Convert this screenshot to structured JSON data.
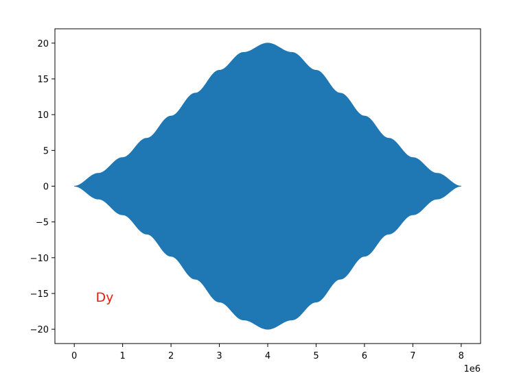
{
  "chart_data": {
    "type": "area",
    "title": "",
    "xlabel": "",
    "ylabel": "",
    "x_offset_label": "1e6",
    "xlim": [
      -0.4,
      8.4
    ],
    "ylim": [
      -22,
      22
    ],
    "x_ticks": [
      0,
      1,
      2,
      3,
      4,
      5,
      6,
      7,
      8
    ],
    "x_tick_labels": [
      "0",
      "1",
      "2",
      "3",
      "4",
      "5",
      "6",
      "7",
      "8"
    ],
    "y_ticks": [
      20,
      15,
      10,
      5,
      0,
      -5,
      -10,
      -15,
      -20
    ],
    "y_tick_labels": [
      "20",
      "15",
      "10",
      "5",
      "0",
      "−5",
      "−10",
      "−15",
      "−20"
    ],
    "series": [
      {
        "color": "#1f77b4",
        "description": "dense oscillation filling a symmetric envelope",
        "x": [
          0,
          0.5,
          1,
          1.5,
          2,
          2.5,
          3,
          3.5,
          4,
          4.5,
          5,
          5.5,
          6,
          6.5,
          7,
          7.5,
          8
        ],
        "envelope": [
          0,
          1.8,
          4.0,
          6.7,
          9.8,
          13.0,
          16.2,
          18.7,
          20.0,
          18.7,
          16.2,
          13.0,
          9.8,
          6.7,
          4.0,
          1.8,
          0
        ]
      }
    ],
    "annotations": [
      {
        "text": "Dy",
        "x": 0.8,
        "y": -15.5,
        "color": "#e8200c"
      }
    ],
    "grid": false,
    "legend": "none"
  }
}
